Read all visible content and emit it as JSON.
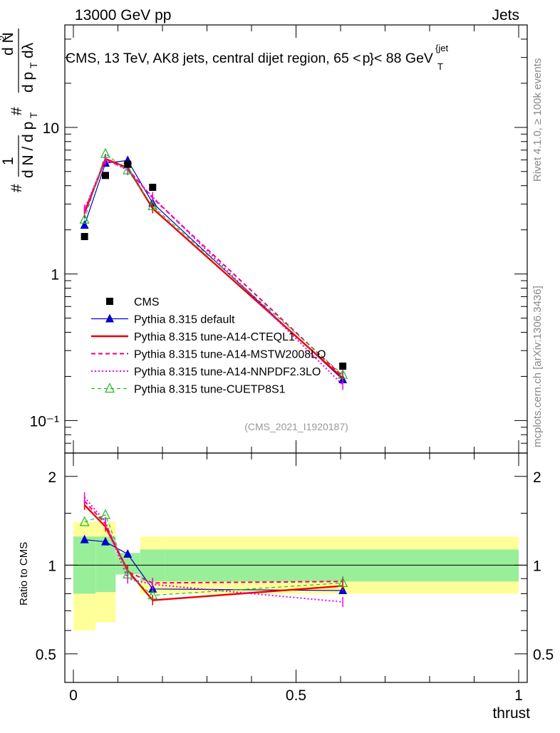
{
  "header": {
    "left": "13000 GeV pp",
    "right": "Jets"
  },
  "side": {
    "rivet": "Rivet 4.1.0, ≥ 100k events",
    "mcplots": "mcplots.cern.ch [arXiv:1306.3436]"
  },
  "analysis_id": "(CMS_2021_I1920187)",
  "chart_data": {
    "type": "line",
    "title": "CMS, 13 TeV, AK8 jets, central dijet region, 65 < p_T^{jet} < 88 GeV",
    "title_parts": {
      "pre": "CMS, 13 TeV, AK8 jets, central dijet region, 65 <",
      "p": "p",
      "sub": "T",
      "sup": "{jet",
      "brace": "}",
      "post": "< 88 GeV"
    },
    "xlabel": "thrust",
    "ylabel_main": "1/(dN/dp_T) d²N/(dp_T dλ)",
    "ylabel_ratio": "Ratio to CMS",
    "xlim": [
      0,
      1
    ],
    "ylim_main": [
      0.06,
      50
    ],
    "ylim_ratio": [
      0.4,
      2.4
    ],
    "yscale": "log",
    "x_ticks": [
      "0",
      "0.5",
      "1"
    ],
    "y_ticks_main": [
      "10⁻¹",
      "1",
      "10"
    ],
    "y_ticks_ratio": [
      "0.5",
      "1",
      "2"
    ],
    "x": [
      0.025,
      0.072,
      0.122,
      0.178,
      0.605
    ],
    "bin_edges": [
      0,
      0.05,
      0.095,
      0.15,
      0.205,
      1.0
    ],
    "data": {
      "name": "CMS",
      "values": [
        1.8,
        4.7,
        5.6,
        3.9,
        0.235
      ]
    },
    "series": [
      {
        "name": "Pythia 8.315 default",
        "color": "#0000cc",
        "values": [
          2.15,
          5.7,
          5.95,
          3.05,
          0.19
        ],
        "ratio": [
          1.22,
          1.2,
          1.09,
          0.83,
          0.82
        ]
      },
      {
        "name": "Pythia 8.315 tune-A14-CTEQL1",
        "color": "#ee0000",
        "values": [
          2.6,
          6.1,
          5.3,
          2.8,
          0.195
        ],
        "ratio": [
          1.6,
          1.35,
          0.96,
          0.76,
          0.85
        ]
      },
      {
        "name": "Pythia 8.315 tune-A14-MSTW2008LO",
        "color": "#ee0077",
        "values": [
          2.7,
          6.0,
          5.2,
          3.3,
          0.2
        ],
        "ratio": [
          1.65,
          1.38,
          0.95,
          0.87,
          0.88
        ]
      },
      {
        "name": "Pythia 8.315 tune-A14-NNPDF2.3LO",
        "color": "#ee00ee",
        "values": [
          2.75,
          6.1,
          5.1,
          3.35,
          0.175
        ],
        "ratio": [
          1.7,
          1.4,
          0.9,
          0.86,
          0.75
        ]
      },
      {
        "name": "Pythia 8.315 tune-CUETP8S1",
        "color": "#22bb22",
        "values": [
          2.35,
          6.6,
          5.1,
          2.9,
          0.205
        ],
        "ratio": [
          1.4,
          1.48,
          0.93,
          0.79,
          0.87
        ]
      }
    ],
    "uncertainty_bands": {
      "inner_lo": [
        0.8,
        0.81,
        0.93,
        0.88,
        0.88
      ],
      "inner_hi": [
        1.25,
        1.25,
        1.1,
        1.13,
        1.13
      ],
      "outer_lo": [
        0.6,
        0.64,
        0.93,
        0.8,
        0.8
      ],
      "outer_hi": [
        1.4,
        1.4,
        1.08,
        1.25,
        1.25
      ]
    },
    "band_colors": {
      "inner": "#99ee99",
      "outer": "#ffff99"
    }
  }
}
